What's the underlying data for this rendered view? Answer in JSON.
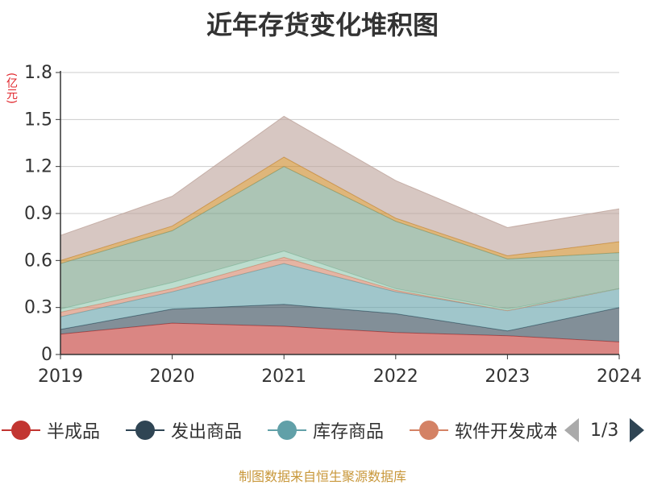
{
  "title": "近年存货变化堆积图",
  "unit_label": "(亿元)",
  "source": "制图数据来自恒生聚源数据库",
  "pager": {
    "text": "1/3"
  },
  "chart_data": {
    "type": "area",
    "stacked": true,
    "title": "近年存货变化堆积图",
    "ylabel": "(亿元)",
    "x": [
      "2019",
      "2020",
      "2021",
      "2022",
      "2023",
      "2024"
    ],
    "ylim": [
      0,
      1.8
    ],
    "yticks": [
      "0",
      "0.3",
      "0.6",
      "0.9",
      "1.2",
      "1.5",
      "1.8"
    ],
    "grid": true,
    "legend_position": "bottom",
    "series": [
      {
        "name": "半成品",
        "color": "#c23531",
        "values": [
          0.13,
          0.2,
          0.18,
          0.14,
          0.12,
          0.08
        ]
      },
      {
        "name": "发出商品",
        "color": "#2f4554",
        "values": [
          0.03,
          0.09,
          0.14,
          0.12,
          0.03,
          0.22
        ]
      },
      {
        "name": "库存商品",
        "color": "#61a0a8",
        "values": [
          0.08,
          0.11,
          0.26,
          0.14,
          0.13,
          0.12
        ]
      },
      {
        "name": "软件开发成本",
        "color": "#d48265",
        "values": [
          0.03,
          0.02,
          0.04,
          0.01,
          0.0,
          0.0
        ]
      },
      {
        "name": "",
        "color": "#91c7ae",
        "values": [
          0.02,
          0.04,
          0.04,
          0.01,
          0.01,
          0.0
        ]
      },
      {
        "name": "",
        "color": "#749f83",
        "values": [
          0.29,
          0.33,
          0.54,
          0.43,
          0.32,
          0.23
        ]
      },
      {
        "name": "",
        "color": "#ca8622",
        "values": [
          0.02,
          0.03,
          0.06,
          0.02,
          0.02,
          0.07
        ]
      },
      {
        "name": "",
        "color": "#bda29a",
        "values": [
          0.16,
          0.19,
          0.26,
          0.24,
          0.18,
          0.21
        ]
      }
    ]
  },
  "legend": [
    {
      "label": "半成品",
      "color": "#c23531"
    },
    {
      "label": "发出商品",
      "color": "#2f4554"
    },
    {
      "label": "库存商品",
      "color": "#61a0a8"
    },
    {
      "label": "软件开发成本",
      "color": "#d48265"
    }
  ]
}
